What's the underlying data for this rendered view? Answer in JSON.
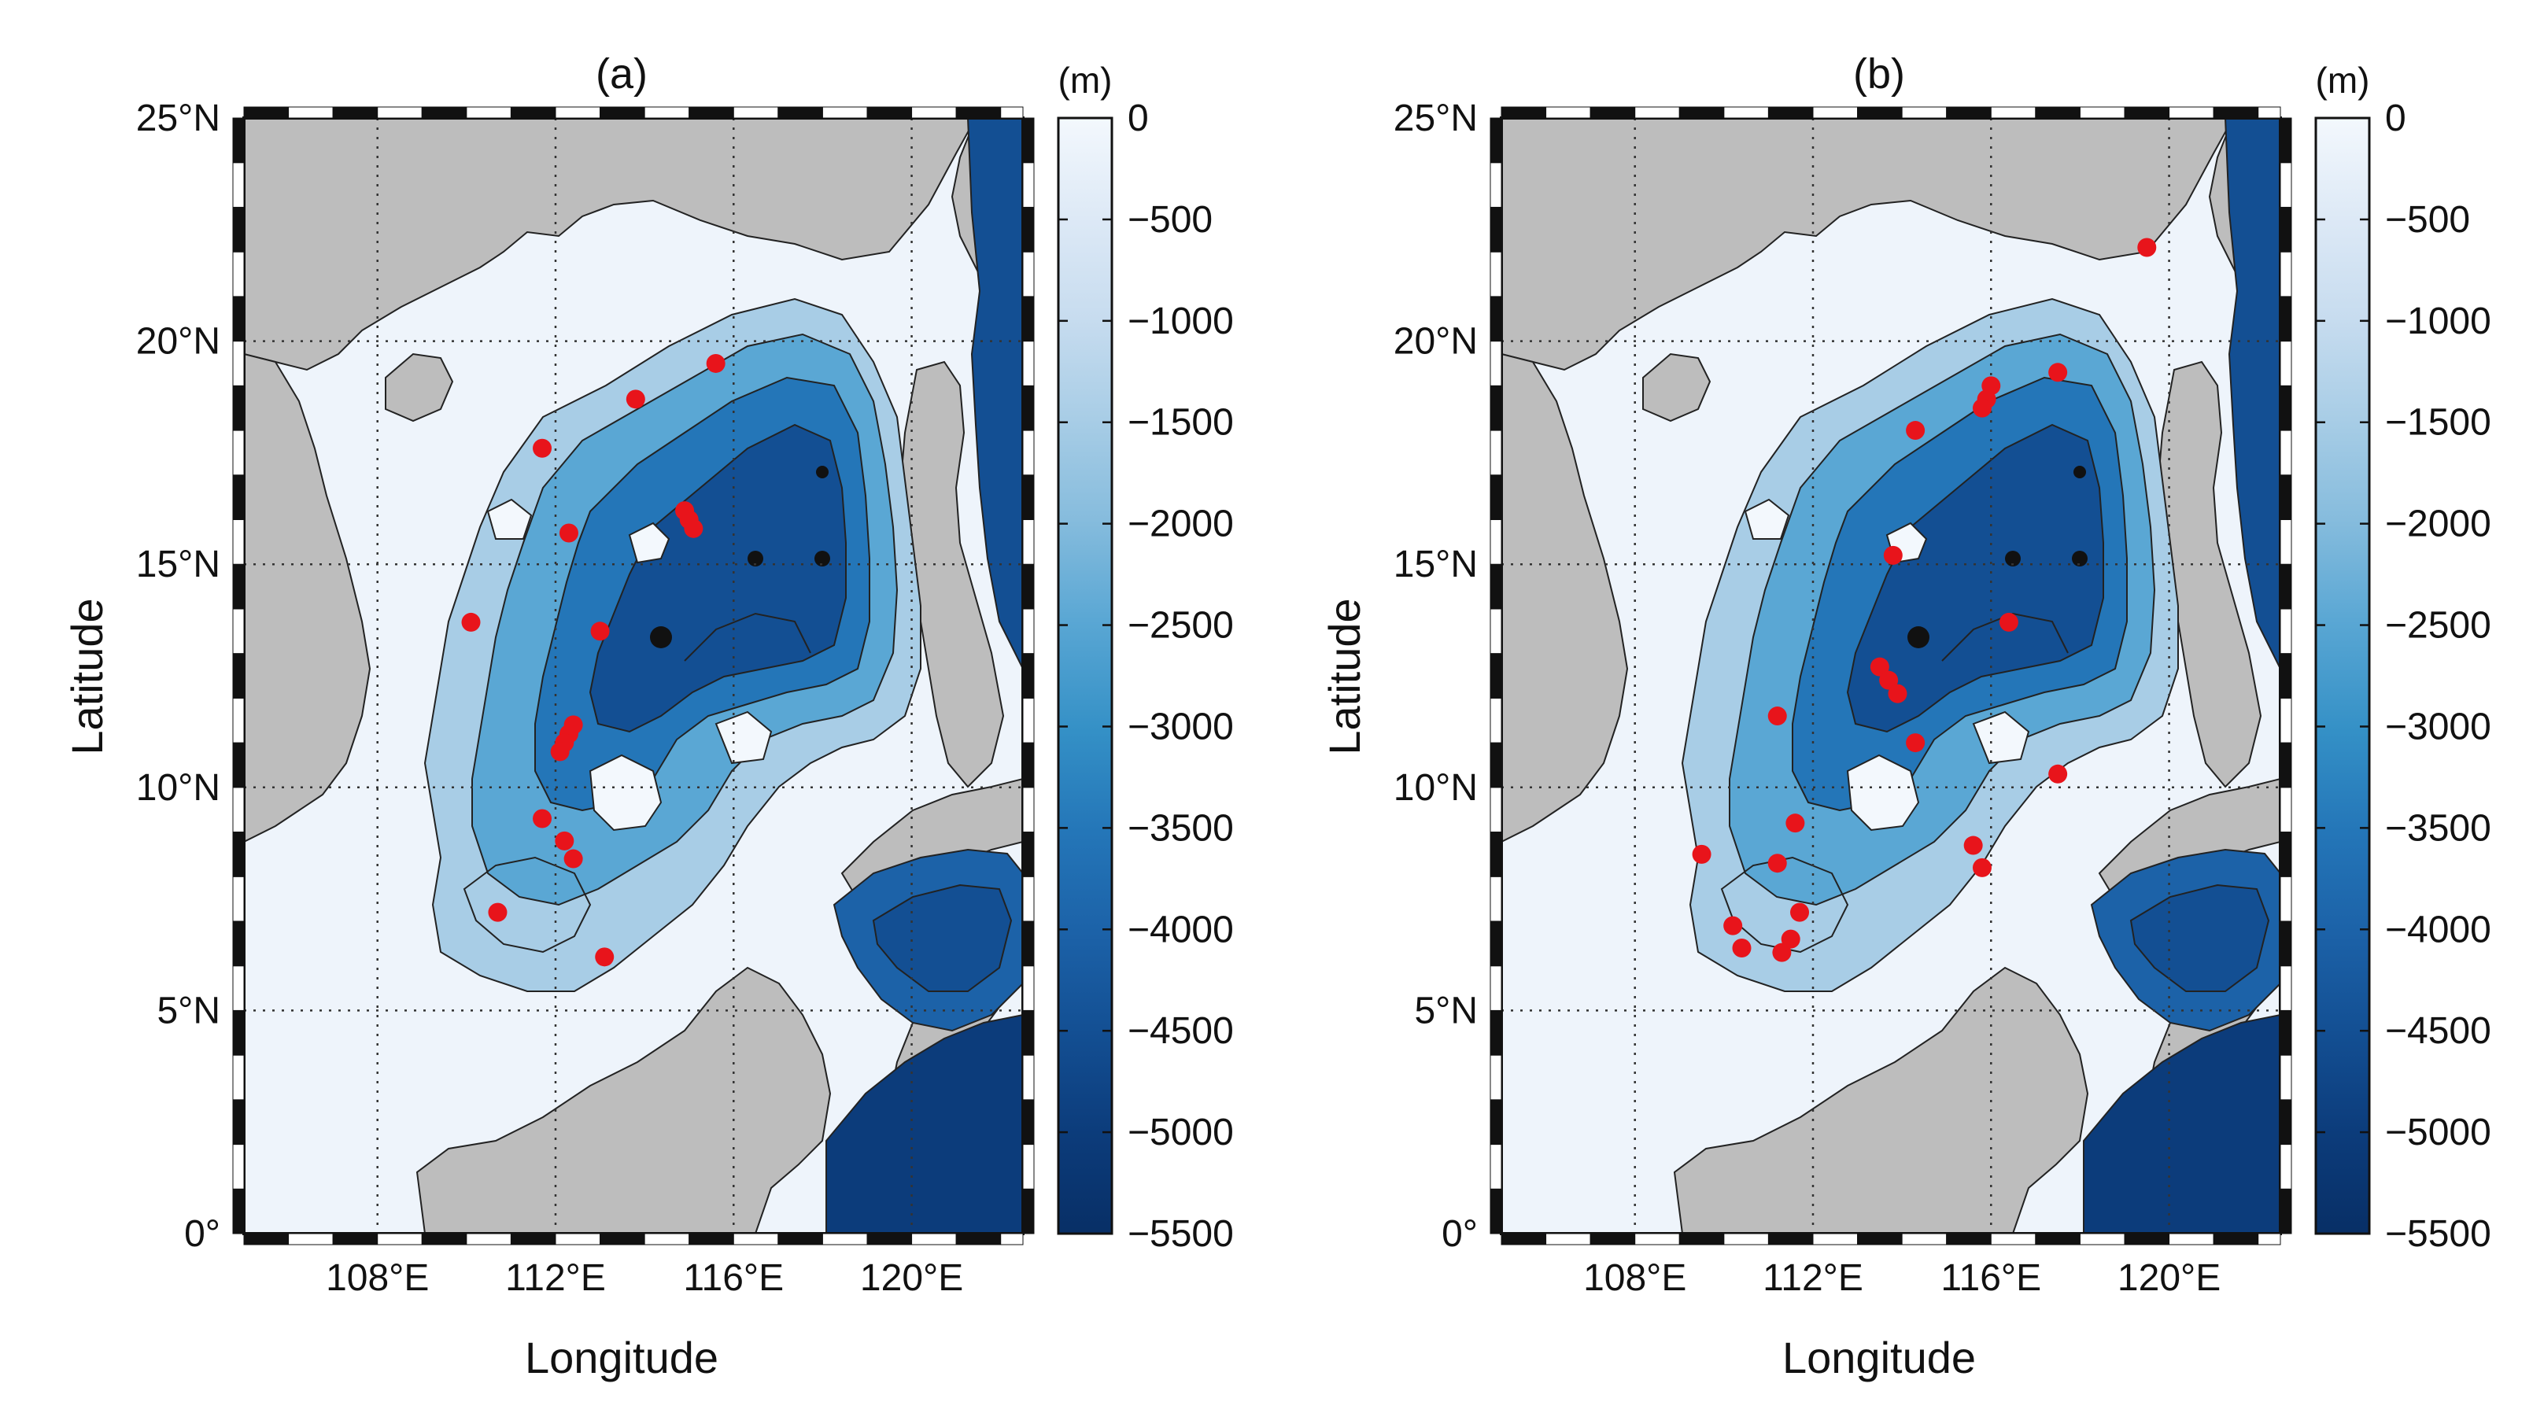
{
  "figure": {
    "panels": [
      {
        "title": "(a)",
        "xlabel": "Longitude",
        "ylabel": "Latitude",
        "colorbar_unit": "(m)",
        "points_color": "#e8141b",
        "sites": [
          {
            "lon": 115.6,
            "lat": 19.5
          },
          {
            "lon": 113.8,
            "lat": 18.7
          },
          {
            "lon": 111.7,
            "lat": 17.6
          },
          {
            "lon": 114.9,
            "lat": 16.2
          },
          {
            "lon": 115.0,
            "lat": 16.0
          },
          {
            "lon": 115.1,
            "lat": 15.8
          },
          {
            "lon": 112.3,
            "lat": 15.7
          },
          {
            "lon": 110.1,
            "lat": 13.7
          },
          {
            "lon": 113.0,
            "lat": 13.5
          },
          {
            "lon": 112.4,
            "lat": 11.4
          },
          {
            "lon": 112.3,
            "lat": 11.2
          },
          {
            "lon": 112.2,
            "lat": 11.0
          },
          {
            "lon": 112.1,
            "lat": 10.8
          },
          {
            "lon": 111.7,
            "lat": 9.3
          },
          {
            "lon": 112.2,
            "lat": 8.8
          },
          {
            "lon": 112.4,
            "lat": 8.4
          },
          {
            "lon": 110.7,
            "lat": 7.2
          },
          {
            "lon": 113.1,
            "lat": 6.2
          }
        ]
      },
      {
        "title": "(b)",
        "xlabel": "Longitude",
        "ylabel": "Latitude",
        "colorbar_unit": "(m)",
        "points_color": "#e8141b",
        "sites": [
          {
            "lon": 119.5,
            "lat": 22.1
          },
          {
            "lon": 117.5,
            "lat": 19.3
          },
          {
            "lon": 116.0,
            "lat": 19.0
          },
          {
            "lon": 115.9,
            "lat": 18.7
          },
          {
            "lon": 115.8,
            "lat": 18.5
          },
          {
            "lon": 114.3,
            "lat": 18.0
          },
          {
            "lon": 113.8,
            "lat": 15.2
          },
          {
            "lon": 116.4,
            "lat": 13.7
          },
          {
            "lon": 113.5,
            "lat": 12.7
          },
          {
            "lon": 113.7,
            "lat": 12.4
          },
          {
            "lon": 113.9,
            "lat": 12.1
          },
          {
            "lon": 111.2,
            "lat": 11.6
          },
          {
            "lon": 114.3,
            "lat": 11.0
          },
          {
            "lon": 117.5,
            "lat": 10.3
          },
          {
            "lon": 111.6,
            "lat": 9.2
          },
          {
            "lon": 115.6,
            "lat": 8.7
          },
          {
            "lon": 109.5,
            "lat": 8.5
          },
          {
            "lon": 111.2,
            "lat": 8.3
          },
          {
            "lon": 115.8,
            "lat": 8.2
          },
          {
            "lon": 111.7,
            "lat": 7.2
          },
          {
            "lon": 110.2,
            "lat": 6.9
          },
          {
            "lon": 111.5,
            "lat": 6.6
          },
          {
            "lon": 110.4,
            "lat": 6.4
          },
          {
            "lon": 111.3,
            "lat": 6.3
          }
        ]
      }
    ],
    "map_extent": {
      "lon_min": 105,
      "lon_max": 122.5,
      "lat_min": 0,
      "lat_max": 25
    },
    "lon_ticks": [
      {
        "value": 108,
        "label": "108°E"
      },
      {
        "value": 112,
        "label": "112°E"
      },
      {
        "value": 116,
        "label": "116°E"
      },
      {
        "value": 120,
        "label": "120°E"
      }
    ],
    "lat_ticks": [
      {
        "value": 0,
        "label": "0°"
      },
      {
        "value": 5,
        "label": "5°N"
      },
      {
        "value": 10,
        "label": "10°N"
      },
      {
        "value": 15,
        "label": "15°N"
      },
      {
        "value": 20,
        "label": "20°N"
      },
      {
        "value": 25,
        "label": "25°N"
      }
    ],
    "colorbar": {
      "min": -5500,
      "max": 0,
      "ticks": [
        {
          "value": 0,
          "label": "0"
        },
        {
          "value": -500,
          "label": "−500"
        },
        {
          "value": -1000,
          "label": "−1000"
        },
        {
          "value": -1500,
          "label": "−1500"
        },
        {
          "value": -2000,
          "label": "−2000"
        },
        {
          "value": -2500,
          "label": "−2500"
        },
        {
          "value": -3000,
          "label": "−3000"
        },
        {
          "value": -3500,
          "label": "−3500"
        },
        {
          "value": -4000,
          "label": "−4000"
        },
        {
          "value": -4500,
          "label": "−4500"
        },
        {
          "value": -5000,
          "label": "−5000"
        },
        {
          "value": -5500,
          "label": "−5500"
        }
      ],
      "colors": [
        "#f3f8fd",
        "#dde9f6",
        "#c7dcef",
        "#a8cde6",
        "#86bcdd",
        "#5aa7d4",
        "#3490c6",
        "#2476b8",
        "#1c62a8",
        "#134f93",
        "#0c3c7b",
        "#082f66"
      ]
    },
    "land_color": "#bdbdbd",
    "shelf_color": "#eef4fb"
  }
}
